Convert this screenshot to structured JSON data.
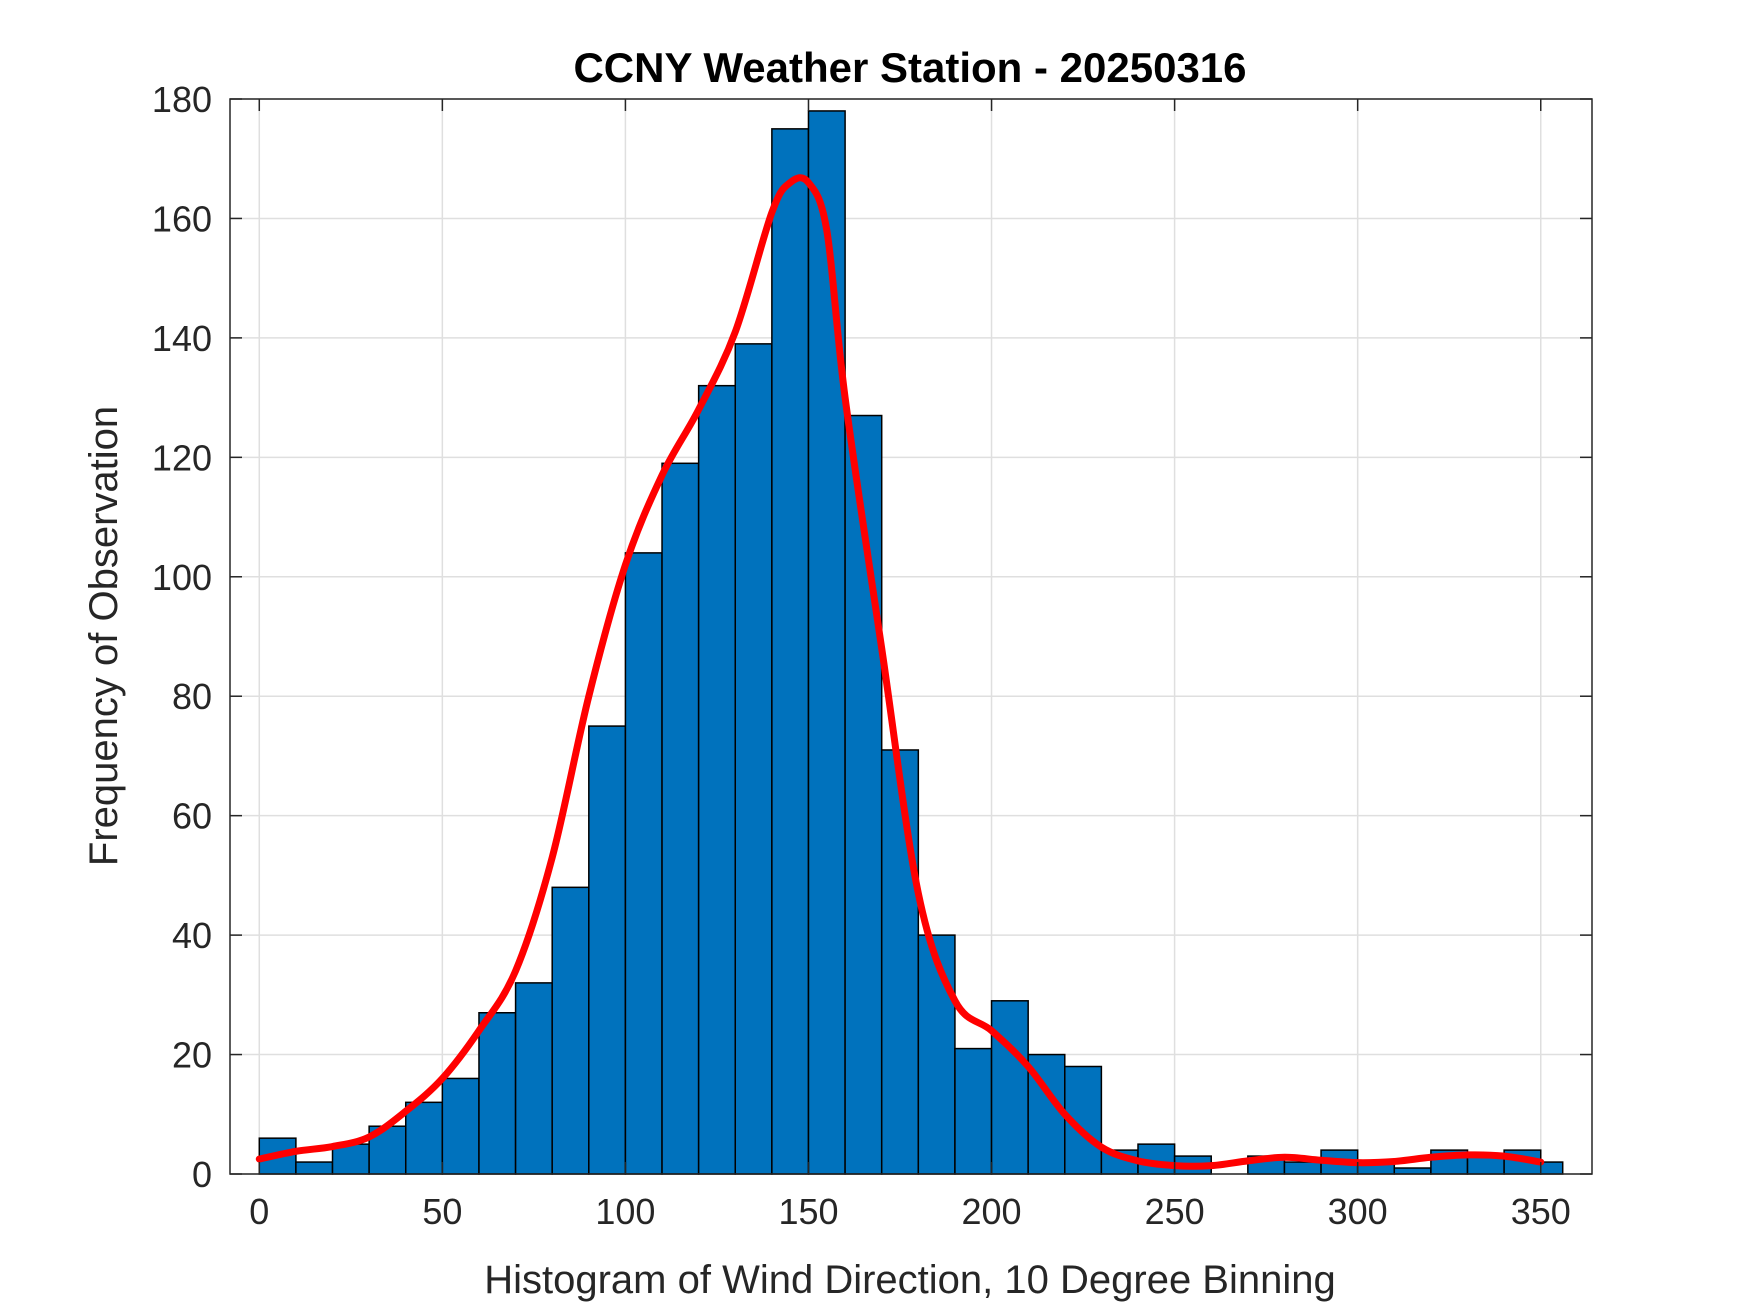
{
  "chart_data": {
    "type": "bar",
    "title": "CCNY Weather Station - 20250316",
    "xlabel": "Histogram of Wind Direction, 10 Degree Binning",
    "ylabel": "Frequency of Observation",
    "xlim": [
      -8,
      364
    ],
    "ylim": [
      0,
      180
    ],
    "xticks": [
      0,
      50,
      100,
      150,
      200,
      250,
      300,
      350
    ],
    "yticks": [
      0,
      20,
      40,
      60,
      80,
      100,
      120,
      140,
      160,
      180
    ],
    "grid": true,
    "bin_width": 10,
    "bin_edges": [
      0,
      10,
      20,
      30,
      40,
      50,
      60,
      70,
      80,
      90,
      100,
      110,
      120,
      130,
      140,
      150,
      160,
      170,
      180,
      190,
      200,
      210,
      220,
      230,
      240,
      250,
      260,
      270,
      280,
      290,
      300,
      310,
      320,
      330,
      340,
      350,
      356
    ],
    "values": [
      6,
      2,
      5,
      8,
      12,
      16,
      27,
      32,
      48,
      75,
      104,
      119,
      132,
      139,
      175,
      178,
      127,
      71,
      40,
      21,
      29,
      20,
      18,
      4,
      5,
      3,
      0,
      3,
      2,
      4,
      2,
      1,
      4,
      3,
      4,
      2
    ],
    "bar_color": "#0072BD",
    "edge_color": "#000000",
    "fit_curve": {
      "color": "#FF0000",
      "x": [
        0,
        10,
        20,
        30,
        40,
        50,
        60,
        70,
        80,
        90,
        100,
        110,
        120,
        130,
        140,
        145,
        150,
        155,
        160,
        170,
        180,
        190,
        200,
        210,
        220,
        230,
        240,
        250,
        260,
        270,
        280,
        290,
        300,
        310,
        320,
        330,
        340,
        350
      ],
      "y": [
        2.5,
        3.8,
        4.6,
        6.2,
        10.5,
        16,
        24,
        34,
        53,
        80,
        102,
        117,
        128,
        141,
        161,
        166,
        166,
        158,
        130,
        88,
        47,
        29,
        24,
        18,
        10,
        4.5,
        2.2,
        1.4,
        1.4,
        2.2,
        2.8,
        2.3,
        1.9,
        2.1,
        2.8,
        3.2,
        3.0,
        2.0
      ]
    }
  }
}
